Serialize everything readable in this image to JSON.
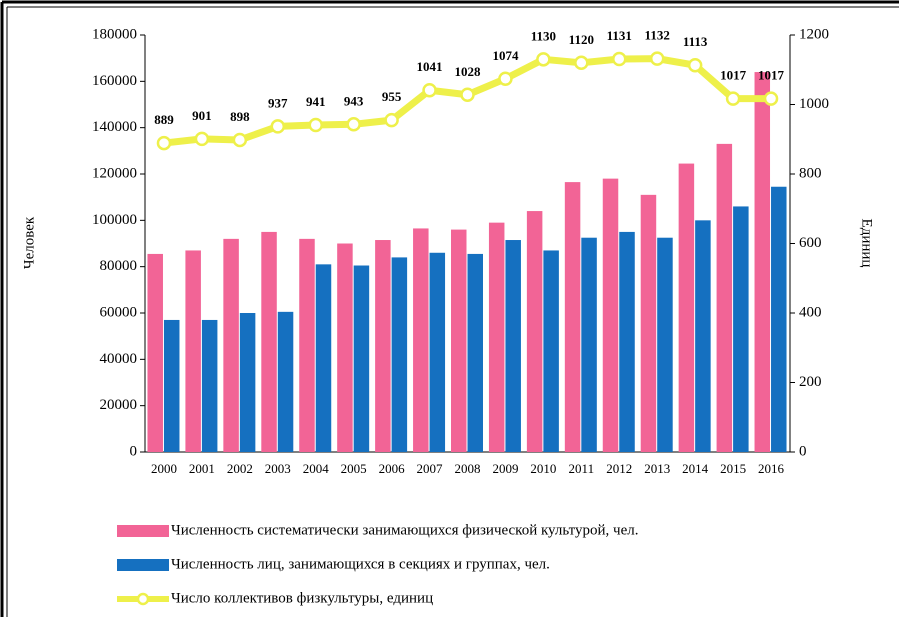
{
  "chart_data": {
    "type": "bar_line",
    "categories": [
      "2000",
      "2001",
      "2002",
      "2003",
      "2004",
      "2005",
      "2006",
      "2007",
      "2008",
      "2009",
      "2010",
      "2011",
      "2012",
      "2013",
      "2014",
      "2015",
      "2016"
    ],
    "y_label": "Человек",
    "y2_label": "Единиц",
    "ylim": [
      0,
      180000
    ],
    "yticks": [
      0,
      20000,
      40000,
      60000,
      80000,
      100000,
      120000,
      140000,
      160000,
      180000
    ],
    "y2lim": [
      0,
      1200
    ],
    "y2ticks": [
      0,
      200,
      400,
      600,
      800,
      1000,
      1200
    ],
    "series": [
      {
        "name": "Численность систематически занимающихся физической культурой, чел.",
        "color": "#f26496",
        "kind": "bar",
        "values": [
          85500,
          87000,
          92000,
          95000,
          92000,
          90000,
          91500,
          96500,
          96000,
          99000,
          104000,
          116500,
          118000,
          111000,
          124500,
          133000,
          164000
        ]
      },
      {
        "name": "Численность лиц, занимающихся в секциях и группах, чел.",
        "color": "#1570c0",
        "kind": "bar",
        "values": [
          57000,
          57000,
          60000,
          60500,
          81000,
          80500,
          84000,
          86000,
          85500,
          91500,
          87000,
          92500,
          95000,
          92500,
          100000,
          106000,
          114500
        ]
      },
      {
        "name": "Число коллективов физкультуры, единиц",
        "color": "#eef04a",
        "kind": "line",
        "axis": "y2",
        "values": [
          889,
          901,
          898,
          937,
          941,
          943,
          955,
          1041,
          1028,
          1074,
          1130,
          1120,
          1131,
          1132,
          1113,
          1017,
          1017
        ]
      }
    ]
  }
}
